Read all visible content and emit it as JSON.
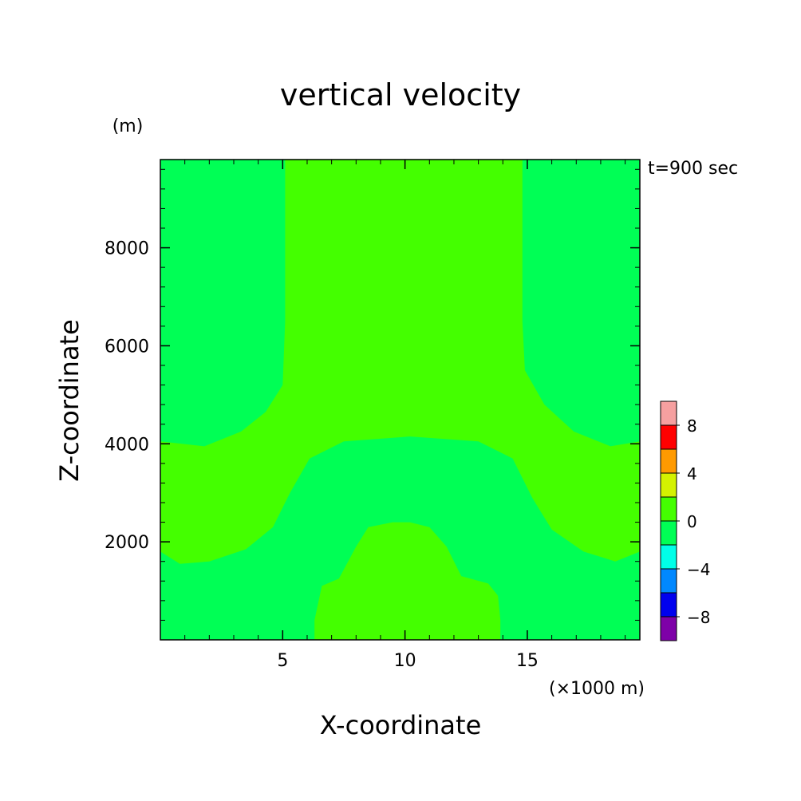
{
  "chart_data": {
    "type": "heatmap",
    "title": "vertical velocity",
    "xlabel": "X-coordinate",
    "ylabel": "Z-coordinate",
    "x_unit": "(×1000 m)",
    "y_unit": "(m)",
    "time_label": "t=900 sec",
    "xlim": [
      0,
      19.6
    ],
    "ylim": [
      0,
      9800
    ],
    "x_ticks": [
      5,
      10,
      15
    ],
    "x_tick_labels": [
      "5",
      "10",
      "15"
    ],
    "y_ticks": [
      2000,
      4000,
      6000,
      8000
    ],
    "y_tick_labels": [
      "2000",
      "4000",
      "6000",
      "8000"
    ],
    "x_minor_step": 1,
    "y_minor_step": 400,
    "background_level": "-2..0",
    "regions": [
      {
        "name": "upper-updraft-zone",
        "level": "0..2",
        "points": [
          [
            5.1,
            9800
          ],
          [
            5.1,
            6500
          ],
          [
            5.0,
            5200
          ],
          [
            4.3,
            4650
          ],
          [
            3.3,
            4250
          ],
          [
            1.8,
            3950
          ],
          [
            0,
            4050
          ],
          [
            0,
            1800
          ],
          [
            0.8,
            1550
          ],
          [
            2.0,
            1600
          ],
          [
            3.5,
            1850
          ],
          [
            4.6,
            2300
          ],
          [
            5.3,
            3000
          ],
          [
            6.1,
            3700
          ],
          [
            7.5,
            4050
          ],
          [
            10.2,
            4150
          ],
          [
            13.0,
            4050
          ],
          [
            14.4,
            3700
          ],
          [
            15.2,
            2900
          ],
          [
            16.0,
            2250
          ],
          [
            17.3,
            1800
          ],
          [
            18.6,
            1600
          ],
          [
            19.6,
            1800
          ],
          [
            19.6,
            4050
          ],
          [
            18.4,
            3950
          ],
          [
            16.9,
            4250
          ],
          [
            15.7,
            4800
          ],
          [
            14.9,
            5500
          ],
          [
            14.8,
            6500
          ],
          [
            14.8,
            9800
          ]
        ]
      },
      {
        "name": "lower-updraft-zone",
        "level": "0..2",
        "points": [
          [
            6.3,
            0
          ],
          [
            6.3,
            400
          ],
          [
            6.6,
            1100
          ],
          [
            7.3,
            1250
          ],
          [
            8.0,
            1900
          ],
          [
            8.5,
            2300
          ],
          [
            9.5,
            2400
          ],
          [
            10.2,
            2400
          ],
          [
            11.0,
            2300
          ],
          [
            11.7,
            1900
          ],
          [
            12.3,
            1300
          ],
          [
            13.4,
            1150
          ],
          [
            13.8,
            900
          ],
          [
            13.9,
            400
          ],
          [
            13.9,
            0
          ]
        ]
      }
    ],
    "colorbar": {
      "tick_values": [
        "8",
        "4",
        "0",
        "-4",
        "-8"
      ],
      "tick_labels": [
        "8",
        "4",
        "0",
        "−4",
        "−8"
      ],
      "colors": [
        "#f6a0a0",
        "#ff0000",
        "#ff9a00",
        "#d4f200",
        "#44ff00",
        "#00ff55",
        "#00ffe8",
        "#0088ff",
        "#0000ee",
        "#7e00a8"
      ]
    },
    "colors": {
      "background_level": "#00ff55",
      "updraft_level": "#44ff00",
      "axis": "#000000"
    }
  }
}
